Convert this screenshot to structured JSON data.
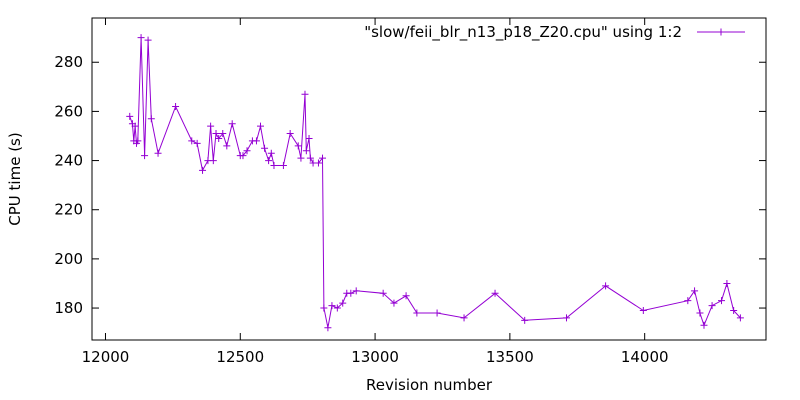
{
  "chart_data": {
    "type": "line",
    "xlabel": "Revision number",
    "ylabel": "CPU time (s)",
    "xlim": [
      11950,
      14450
    ],
    "ylim": [
      167,
      298
    ],
    "xticks": [
      12000,
      12500,
      13000,
      13500,
      14000
    ],
    "yticks": [
      180,
      200,
      220,
      240,
      260,
      280
    ],
    "grid": false,
    "legend_position": "top-right",
    "series": [
      {
        "name": "\"slow/feii_blr_n13_p18_Z20.cpu\" using 1:2",
        "color": "#9400d3",
        "marker": "plus",
        "points": [
          [
            12090,
            258
          ],
          [
            12100,
            255
          ],
          [
            12105,
            248
          ],
          [
            12110,
            254
          ],
          [
            12115,
            247
          ],
          [
            12120,
            248
          ],
          [
            12132,
            290
          ],
          [
            12145,
            242
          ],
          [
            12158,
            289
          ],
          [
            12170,
            257
          ],
          [
            12195,
            243
          ],
          [
            12260,
            262
          ],
          [
            12320,
            248
          ],
          [
            12340,
            247
          ],
          [
            12360,
            236
          ],
          [
            12380,
            240
          ],
          [
            12390,
            254
          ],
          [
            12400,
            240
          ],
          [
            12410,
            251
          ],
          [
            12420,
            249
          ],
          [
            12435,
            251
          ],
          [
            12450,
            246
          ],
          [
            12470,
            255
          ],
          [
            12500,
            242
          ],
          [
            12510,
            242
          ],
          [
            12525,
            244
          ],
          [
            12545,
            248
          ],
          [
            12560,
            248
          ],
          [
            12575,
            254
          ],
          [
            12590,
            245
          ],
          [
            12605,
            240
          ],
          [
            12615,
            243
          ],
          [
            12625,
            238
          ],
          [
            12660,
            238
          ],
          [
            12685,
            251
          ],
          [
            12715,
            246
          ],
          [
            12725,
            241
          ],
          [
            12740,
            267
          ],
          [
            12745,
            244
          ],
          [
            12755,
            249
          ],
          [
            12760,
            241
          ],
          [
            12770,
            239
          ],
          [
            12790,
            239
          ],
          [
            12805,
            241
          ],
          [
            12810,
            180
          ],
          [
            12825,
            172
          ],
          [
            12840,
            181
          ],
          [
            12860,
            180
          ],
          [
            12880,
            182
          ],
          [
            12895,
            186
          ],
          [
            12910,
            186
          ],
          [
            12930,
            187
          ],
          [
            13030,
            186
          ],
          [
            13070,
            182
          ],
          [
            13115,
            185
          ],
          [
            13155,
            178
          ],
          [
            13230,
            178
          ],
          [
            13330,
            176
          ],
          [
            13445,
            186
          ],
          [
            13555,
            175
          ],
          [
            13710,
            176
          ],
          [
            13855,
            189
          ],
          [
            13995,
            179
          ],
          [
            14160,
            183
          ],
          [
            14185,
            187
          ],
          [
            14205,
            178
          ],
          [
            14220,
            173
          ],
          [
            14250,
            181
          ],
          [
            14285,
            183
          ],
          [
            14305,
            190
          ],
          [
            14330,
            179
          ],
          [
            14355,
            176
          ]
        ]
      }
    ]
  }
}
